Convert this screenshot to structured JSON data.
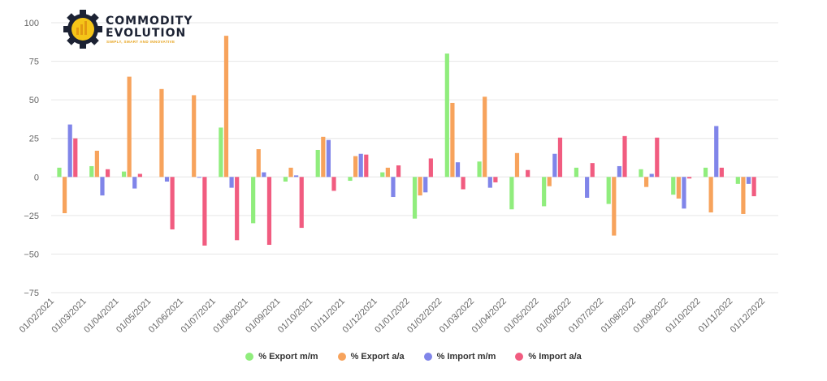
{
  "logo": {
    "line1": "COMMODITY",
    "line2": "EVOLUTION",
    "tagline": "SIMPLY, SMART AND INNOVATIVE"
  },
  "chart_data": {
    "type": "bar",
    "categories": [
      "01/02/2021",
      "01/03/2021",
      "01/04/2021",
      "01/05/2021",
      "01/06/2021",
      "01/07/2021",
      "01/08/2021",
      "01/09/2021",
      "01/10/2021",
      "01/11/2021",
      "01/12/2021",
      "01/01/2022",
      "01/02/2022",
      "01/03/2022",
      "01/04/2022",
      "01/05/2022",
      "01/06/2022",
      "01/07/2022",
      "01/08/2022",
      "01/09/2022",
      "01/10/2022",
      "01/11/2022",
      "01/12/2022"
    ],
    "series": [
      {
        "name": "% Export m/m",
        "color": "#90ed7d",
        "values": [
          6,
          7,
          3.5,
          0,
          0,
          32,
          -30,
          -3,
          17.5,
          -2.5,
          3,
          -27,
          80,
          10,
          -21,
          -19,
          6,
          -17.5,
          5,
          -11.5,
          6,
          -4.5,
          null
        ]
      },
      {
        "name": "% Export a/a",
        "color": "#f7a35c",
        "values": [
          -23.5,
          17,
          65,
          57,
          53,
          91.5,
          18,
          6,
          26,
          13.5,
          6,
          -12,
          48,
          52,
          15.5,
          -6,
          0,
          -38,
          -6.5,
          -14,
          -23,
          -24,
          null
        ]
      },
      {
        "name": "% Import m/m",
        "color": "#8085e9",
        "values": [
          34,
          -12,
          -7.5,
          -3,
          -0.5,
          -7,
          3,
          1,
          24,
          15,
          -13,
          -10,
          9.5,
          -7,
          0,
          15,
          -13.5,
          7,
          2,
          -20.5,
          33,
          -4.5,
          null
        ]
      },
      {
        "name": "% Import a/a",
        "color": "#f15c80",
        "values": [
          25,
          5,
          2,
          -34,
          -44.5,
          -41,
          -44,
          -33,
          -9,
          14.5,
          7.5,
          12,
          -8,
          -3.5,
          4.5,
          25.5,
          9,
          26.5,
          25.5,
          -1,
          6,
          -12.5,
          null
        ]
      }
    ],
    "yticks": [
      "100",
      "75",
      "50",
      "25",
      "0",
      "−25",
      "−50",
      "−75"
    ],
    "ylim": [
      -75,
      100
    ],
    "grid": true,
    "legend_position": "bottom"
  }
}
